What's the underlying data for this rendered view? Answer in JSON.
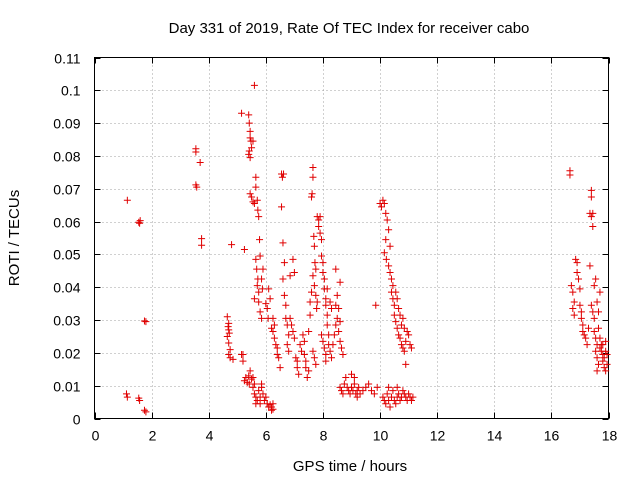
{
  "chart_data": {
    "type": "scatter",
    "title": "Day 331 of 2019, Rate Of TEC Index for receiver cabo",
    "xlabel": "GPS time / hours",
    "ylabel": "ROTI / TECUs",
    "xlim": [
      0,
      18
    ],
    "ylim": [
      0,
      0.11
    ],
    "grid": true,
    "marker": "+",
    "color": "#e00000",
    "x_ticks": [
      {
        "value": 0,
        "label": "0"
      },
      {
        "value": 2,
        "label": "2"
      },
      {
        "value": 4,
        "label": "4"
      },
      {
        "value": 6,
        "label": "6"
      },
      {
        "value": 8,
        "label": "8"
      },
      {
        "value": 10,
        "label": "10"
      },
      {
        "value": 12,
        "label": "12"
      },
      {
        "value": 14,
        "label": "14"
      },
      {
        "value": 16,
        "label": "16"
      },
      {
        "value": 18,
        "label": "18"
      }
    ],
    "y_ticks": [
      {
        "value": 0,
        "label": "0"
      },
      {
        "value": 0.01,
        "label": "0.01"
      },
      {
        "value": 0.02,
        "label": "0.02"
      },
      {
        "value": 0.03,
        "label": "0.03"
      },
      {
        "value": 0.04,
        "label": "0.04"
      },
      {
        "value": 0.05,
        "label": "0.05"
      },
      {
        "value": 0.06,
        "label": "0.06"
      },
      {
        "value": 0.07,
        "label": "0.07"
      },
      {
        "value": 0.08,
        "label": "0.08"
      },
      {
        "value": 0.09,
        "label": "0.09"
      },
      {
        "value": 0.1,
        "label": "0.1"
      },
      {
        "value": 0.11,
        "label": "0.11"
      }
    ],
    "points": [
      [
        1.15,
        0.0665
      ],
      [
        1.12,
        0.0075
      ],
      [
        1.15,
        0.0065
      ],
      [
        1.55,
        0.0598
      ],
      [
        1.6,
        0.0603
      ],
      [
        1.58,
        0.0595
      ],
      [
        1.55,
        0.0062
      ],
      [
        1.58,
        0.0055
      ],
      [
        1.75,
        0.0297
      ],
      [
        1.8,
        0.0295
      ],
      [
        1.75,
        0.0025
      ],
      [
        1.8,
        0.002
      ],
      [
        3.55,
        0.0822
      ],
      [
        3.55,
        0.0812
      ],
      [
        3.55,
        0.0712
      ],
      [
        3.58,
        0.0705
      ],
      [
        3.7,
        0.078
      ],
      [
        3.75,
        0.0548
      ],
      [
        3.75,
        0.0528
      ],
      [
        4.65,
        0.031
      ],
      [
        4.7,
        0.029
      ],
      [
        4.7,
        0.027
      ],
      [
        4.65,
        0.025
      ],
      [
        4.7,
        0.023
      ],
      [
        4.75,
        0.021
      ],
      [
        4.72,
        0.026
      ],
      [
        4.68,
        0.028
      ],
      [
        4.7,
        0.0195
      ],
      [
        4.75,
        0.0185
      ],
      [
        4.8,
        0.053
      ],
      [
        4.85,
        0.018
      ],
      [
        5.15,
        0.093
      ],
      [
        5.15,
        0.0195
      ],
      [
        5.2,
        0.0175
      ],
      [
        5.2,
        0.0195
      ],
      [
        5.25,
        0.0115
      ],
      [
        5.3,
        0.0125
      ],
      [
        5.35,
        0.011
      ],
      [
        5.4,
        0.013
      ],
      [
        5.42,
        0.0105
      ],
      [
        5.45,
        0.0145
      ],
      [
        5.5,
        0.012
      ],
      [
        5.25,
        0.0515
      ],
      [
        5.4,
        0.0925
      ],
      [
        5.42,
        0.09
      ],
      [
        5.45,
        0.0875
      ],
      [
        5.45,
        0.0855
      ],
      [
        5.48,
        0.0845
      ],
      [
        5.42,
        0.0815
      ],
      [
        5.4,
        0.0805
      ],
      [
        5.45,
        0.0795
      ],
      [
        5.55,
        0.0845
      ],
      [
        5.5,
        0.0825
      ],
      [
        5.45,
        0.0685
      ],
      [
        5.5,
        0.0675
      ],
      [
        5.55,
        0.066
      ],
      [
        5.6,
        0.1015
      ],
      [
        5.6,
        0.0655
      ],
      [
        5.65,
        0.0735
      ],
      [
        5.65,
        0.0705
      ],
      [
        5.7,
        0.0665
      ],
      [
        5.72,
        0.0635
      ],
      [
        5.75,
        0.0615
      ],
      [
        5.78,
        0.0545
      ],
      [
        5.8,
        0.0495
      ],
      [
        5.65,
        0.0485
      ],
      [
        5.68,
        0.0455
      ],
      [
        5.72,
        0.0425
      ],
      [
        5.7,
        0.0405
      ],
      [
        5.75,
        0.0385
      ],
      [
        5.6,
        0.0365
      ],
      [
        5.75,
        0.0355
      ],
      [
        5.8,
        0.0325
      ],
      [
        5.85,
        0.0305
      ],
      [
        5.85,
        0.0425
      ],
      [
        5.88,
        0.0395
      ],
      [
        5.9,
        0.0455
      ],
      [
        5.55,
        0.0095
      ],
      [
        5.6,
        0.0075
      ],
      [
        5.65,
        0.0065
      ],
      [
        5.7,
        0.0055
      ],
      [
        5.75,
        0.0085
      ],
      [
        5.8,
        0.0065
      ],
      [
        5.85,
        0.0095
      ],
      [
        5.9,
        0.0075
      ],
      [
        5.95,
        0.0055
      ],
      [
        6.0,
        0.0065
      ],
      [
        5.65,
        0.0045
      ],
      [
        5.8,
        0.0045
      ],
      [
        5.6,
        0.0105
      ],
      [
        5.85,
        0.0105
      ],
      [
        5.55,
        0.0125
      ],
      [
        6.05,
        0.0045
      ],
      [
        6.1,
        0.0035
      ],
      [
        6.15,
        0.0042
      ],
      [
        6.2,
        0.0035
      ],
      [
        6.25,
        0.0045
      ],
      [
        6.2,
        0.0025
      ],
      [
        6.25,
        0.0028
      ],
      [
        6.0,
        0.035
      ],
      [
        6.05,
        0.0335
      ],
      [
        6.08,
        0.0305
      ],
      [
        6.1,
        0.0395
      ],
      [
        6.15,
        0.0365
      ],
      [
        6.2,
        0.0275
      ],
      [
        6.25,
        0.0265
      ],
      [
        6.3,
        0.0245
      ],
      [
        6.35,
        0.0225
      ],
      [
        6.4,
        0.0215
      ],
      [
        6.25,
        0.0305
      ],
      [
        6.3,
        0.0285
      ],
      [
        6.4,
        0.0195
      ],
      [
        6.45,
        0.0185
      ],
      [
        6.5,
        0.0155
      ],
      [
        6.55,
        0.0645
      ],
      [
        6.55,
        0.0745
      ],
      [
        6.58,
        0.0735
      ],
      [
        6.62,
        0.0745
      ],
      [
        6.6,
        0.0535
      ],
      [
        6.65,
        0.0475
      ],
      [
        6.6,
        0.0425
      ],
      [
        6.65,
        0.0375
      ],
      [
        6.7,
        0.0345
      ],
      [
        6.7,
        0.0305
      ],
      [
        6.75,
        0.0285
      ],
      [
        6.8,
        0.0255
      ],
      [
        6.75,
        0.0225
      ],
      [
        6.8,
        0.0205
      ],
      [
        6.85,
        0.0305
      ],
      [
        6.9,
        0.0285
      ],
      [
        6.85,
        0.0435
      ],
      [
        6.95,
        0.0265
      ],
      [
        7.0,
        0.0245
      ],
      [
        6.95,
        0.0485
      ],
      [
        7.0,
        0.0445
      ],
      [
        7.05,
        0.0185
      ],
      [
        7.1,
        0.0175
      ],
      [
        7.1,
        0.0155
      ],
      [
        7.15,
        0.0135
      ],
      [
        7.2,
        0.0225
      ],
      [
        7.25,
        0.0205
      ],
      [
        7.3,
        0.0255
      ],
      [
        7.35,
        0.0235
      ],
      [
        7.35,
        0.0195
      ],
      [
        7.4,
        0.0175
      ],
      [
        7.4,
        0.0155
      ],
      [
        7.45,
        0.0125
      ],
      [
        7.5,
        0.0145
      ],
      [
        7.5,
        0.0265
      ],
      [
        7.55,
        0.0315
      ],
      [
        7.55,
        0.0355
      ],
      [
        7.6,
        0.0385
      ],
      [
        7.6,
        0.0675
      ],
      [
        7.62,
        0.0685
      ],
      [
        7.65,
        0.0765
      ],
      [
        7.65,
        0.0735
      ],
      [
        7.68,
        0.0555
      ],
      [
        7.7,
        0.0525
      ],
      [
        7.72,
        0.0475
      ],
      [
        7.75,
        0.0455
      ],
      [
        7.65,
        0.0435
      ],
      [
        7.7,
        0.0405
      ],
      [
        7.75,
        0.0375
      ],
      [
        7.8,
        0.0355
      ],
      [
        7.78,
        0.0335
      ],
      [
        7.65,
        0.0205
      ],
      [
        7.7,
        0.0185
      ],
      [
        7.75,
        0.0165
      ],
      [
        7.8,
        0.0615
      ],
      [
        7.85,
        0.0605
      ],
      [
        7.85,
        0.0585
      ],
      [
        7.9,
        0.0615
      ],
      [
        7.9,
        0.0565
      ],
      [
        7.95,
        0.0545
      ],
      [
        7.95,
        0.0495
      ],
      [
        8.0,
        0.0475
      ],
      [
        8.0,
        0.0445
      ],
      [
        8.05,
        0.0425
      ],
      [
        8.05,
        0.0395
      ],
      [
        8.1,
        0.0365
      ],
      [
        8.1,
        0.0345
      ],
      [
        8.15,
        0.0315
      ],
      [
        8.15,
        0.0285
      ],
      [
        8.2,
        0.0255
      ],
      [
        8.2,
        0.0225
      ],
      [
        8.25,
        0.0205
      ],
      [
        8.3,
        0.0185
      ],
      [
        8.35,
        0.0225
      ],
      [
        8.4,
        0.0255
      ],
      [
        8.45,
        0.0285
      ],
      [
        8.5,
        0.0305
      ],
      [
        8.45,
        0.0345
      ],
      [
        8.5,
        0.0375
      ],
      [
        8.55,
        0.0335
      ],
      [
        8.6,
        0.0295
      ],
      [
        8.55,
        0.0265
      ],
      [
        8.6,
        0.0235
      ],
      [
        8.65,
        0.0215
      ],
      [
        8.7,
        0.0195
      ],
      [
        8.6,
        0.0415
      ],
      [
        8.45,
        0.0455
      ],
      [
        8.15,
        0.0395
      ],
      [
        8.25,
        0.0355
      ],
      [
        8.3,
        0.0335
      ],
      [
        7.95,
        0.0255
      ],
      [
        8.0,
        0.0235
      ],
      [
        8.05,
        0.0215
      ],
      [
        8.1,
        0.0195
      ],
      [
        8.1,
        0.0175
      ],
      [
        8.6,
        0.0095
      ],
      [
        8.65,
        0.0085
      ],
      [
        8.7,
        0.0075
      ],
      [
        8.75,
        0.0105
      ],
      [
        8.8,
        0.0125
      ],
      [
        8.85,
        0.0095
      ],
      [
        8.9,
        0.0085
      ],
      [
        8.95,
        0.0075
      ],
      [
        9.0,
        0.0095
      ],
      [
        9.05,
        0.0085
      ],
      [
        9.1,
        0.0105
      ],
      [
        9.15,
        0.0075
      ],
      [
        9.2,
        0.0085
      ],
      [
        9.25,
        0.0095
      ],
      [
        9.3,
        0.0075
      ],
      [
        9.4,
        0.0085
      ],
      [
        9.5,
        0.0095
      ],
      [
        9.6,
        0.0105
      ],
      [
        9.7,
        0.0085
      ],
      [
        9.8,
        0.0075
      ],
      [
        9.9,
        0.0095
      ],
      [
        9.1,
        0.0125
      ],
      [
        9.0,
        0.0135
      ],
      [
        9.2,
        0.0065
      ],
      [
        9.85,
        0.0345
      ],
      [
        10.0,
        0.0655
      ],
      [
        10.05,
        0.0645
      ],
      [
        10.1,
        0.0665
      ],
      [
        10.15,
        0.0655
      ],
      [
        10.2,
        0.0625
      ],
      [
        10.25,
        0.0605
      ],
      [
        10.3,
        0.0575
      ],
      [
        10.2,
        0.0545
      ],
      [
        10.15,
        0.0505
      ],
      [
        10.22,
        0.0485
      ],
      [
        10.3,
        0.0465
      ],
      [
        10.35,
        0.0445
      ],
      [
        10.4,
        0.0425
      ],
      [
        10.45,
        0.0405
      ],
      [
        10.35,
        0.0525
      ],
      [
        10.4,
        0.0385
      ],
      [
        10.45,
        0.0365
      ],
      [
        10.5,
        0.0345
      ],
      [
        10.5,
        0.0315
      ],
      [
        10.55,
        0.0295
      ],
      [
        10.6,
        0.0275
      ],
      [
        10.65,
        0.0255
      ],
      [
        10.7,
        0.0245
      ],
      [
        10.75,
        0.0225
      ],
      [
        10.8,
        0.0215
      ],
      [
        10.85,
        0.0205
      ],
      [
        10.9,
        0.0235
      ],
      [
        10.95,
        0.0265
      ],
      [
        11.0,
        0.0255
      ],
      [
        11.05,
        0.0225
      ],
      [
        11.1,
        0.0215
      ],
      [
        10.55,
        0.0385
      ],
      [
        10.6,
        0.0365
      ],
      [
        10.65,
        0.0335
      ],
      [
        10.7,
        0.0315
      ],
      [
        10.75,
        0.0285
      ],
      [
        10.8,
        0.0305
      ],
      [
        10.85,
        0.0275
      ],
      [
        10.9,
        0.0165
      ],
      [
        10.1,
        0.0065
      ],
      [
        10.15,
        0.0055
      ],
      [
        10.2,
        0.0045
      ],
      [
        10.25,
        0.0075
      ],
      [
        10.3,
        0.0055
      ],
      [
        10.35,
        0.0035
      ],
      [
        10.4,
        0.0065
      ],
      [
        10.45,
        0.0085
      ],
      [
        10.5,
        0.0055
      ],
      [
        10.55,
        0.0045
      ],
      [
        10.6,
        0.0065
      ],
      [
        10.65,
        0.0075
      ],
      [
        10.7,
        0.0055
      ],
      [
        10.75,
        0.0065
      ],
      [
        10.8,
        0.0085
      ],
      [
        10.85,
        0.0075
      ],
      [
        10.9,
        0.0065
      ],
      [
        10.95,
        0.0055
      ],
      [
        11.0,
        0.0075
      ],
      [
        11.05,
        0.0065
      ],
      [
        11.1,
        0.0055
      ],
      [
        11.15,
        0.0065
      ],
      [
        10.3,
        0.0095
      ],
      [
        10.6,
        0.0095
      ],
      [
        16.65,
        0.0755
      ],
      [
        16.65,
        0.0742
      ],
      [
        16.7,
        0.0405
      ],
      [
        16.75,
        0.0385
      ],
      [
        16.8,
        0.0355
      ],
      [
        16.75,
        0.0335
      ],
      [
        16.8,
        0.0315
      ],
      [
        16.85,
        0.0485
      ],
      [
        16.9,
        0.0475
      ],
      [
        16.9,
        0.0445
      ],
      [
        16.95,
        0.0425
      ],
      [
        17.0,
        0.0395
      ],
      [
        17.0,
        0.0345
      ],
      [
        17.05,
        0.0325
      ],
      [
        17.05,
        0.0305
      ],
      [
        17.1,
        0.0285
      ],
      [
        17.1,
        0.0265
      ],
      [
        17.15,
        0.0255
      ],
      [
        17.2,
        0.0245
      ],
      [
        17.25,
        0.0225
      ],
      [
        17.3,
        0.0275
      ],
      [
        17.35,
        0.0465
      ],
      [
        17.4,
        0.0695
      ],
      [
        17.4,
        0.0675
      ],
      [
        17.35,
        0.0625
      ],
      [
        17.4,
        0.0615
      ],
      [
        17.45,
        0.0625
      ],
      [
        17.45,
        0.0585
      ],
      [
        17.4,
        0.0345
      ],
      [
        17.45,
        0.0325
      ],
      [
        17.5,
        0.0305
      ],
      [
        17.5,
        0.0265
      ],
      [
        17.55,
        0.0245
      ],
      [
        17.6,
        0.0225
      ],
      [
        17.55,
        0.0205
      ],
      [
        17.6,
        0.0185
      ],
      [
        17.65,
        0.0165
      ],
      [
        17.6,
        0.0145
      ],
      [
        17.7,
        0.0215
      ],
      [
        17.75,
        0.0205
      ],
      [
        17.8,
        0.0195
      ],
      [
        17.85,
        0.0185
      ],
      [
        17.9,
        0.0205
      ],
      [
        17.95,
        0.0195
      ],
      [
        17.7,
        0.0245
      ],
      [
        17.75,
        0.0225
      ],
      [
        17.8,
        0.0175
      ],
      [
        17.85,
        0.0155
      ],
      [
        17.9,
        0.0145
      ],
      [
        17.65,
        0.0275
      ],
      [
        17.7,
        0.0385
      ],
      [
        17.55,
        0.0425
      ],
      [
        17.5,
        0.0405
      ],
      [
        17.95,
        0.0165
      ],
      [
        17.6,
        0.0355
      ],
      [
        17.65,
        0.0325
      ],
      [
        17.8,
        0.0225
      ],
      [
        17.9,
        0.0235
      ]
    ]
  }
}
